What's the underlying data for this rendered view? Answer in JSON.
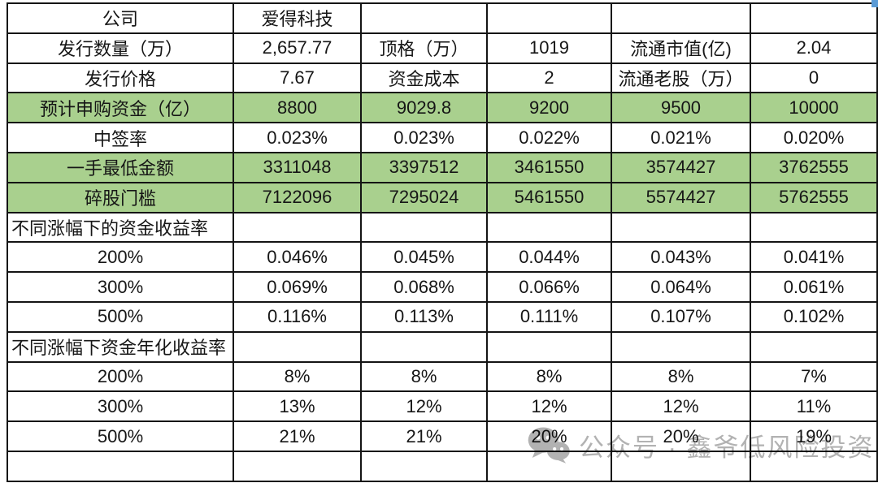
{
  "table": {
    "rows": [
      {
        "highlight": false,
        "label_align": "center",
        "cells": [
          "公司",
          "爱得科技",
          "",
          "",
          "",
          ""
        ]
      },
      {
        "highlight": false,
        "label_align": "center",
        "cells": [
          "发行数量（万）",
          "2,657.77",
          "顶格（万）",
          "1019",
          "流通市值(亿)",
          "2.04"
        ]
      },
      {
        "highlight": false,
        "label_align": "center",
        "cells": [
          "发行价格",
          "7.67",
          "资金成本",
          "2",
          "流通老股（万）",
          "0"
        ]
      },
      {
        "highlight": true,
        "label_align": "center",
        "cells": [
          "预计申购资金（亿）",
          "8800",
          "9029.8",
          "9200",
          "9500",
          "10000"
        ]
      },
      {
        "highlight": false,
        "label_align": "center",
        "cells": [
          "中签率",
          "0.023%",
          "0.023%",
          "0.022%",
          "0.021%",
          "0.020%"
        ]
      },
      {
        "highlight": true,
        "label_align": "center",
        "cells": [
          "一手最低金额",
          "3311048",
          "3397512",
          "3461550",
          "3574427",
          "3762555"
        ]
      },
      {
        "highlight": true,
        "label_align": "center",
        "cells": [
          "碎股门槛",
          "7122096",
          "7295024",
          "5461550",
          "5574427",
          "5762555"
        ]
      },
      {
        "highlight": false,
        "label_align": "left",
        "cells": [
          "不同涨幅下的资金收益率",
          "",
          "",
          "",
          "",
          ""
        ]
      },
      {
        "highlight": false,
        "label_align": "center",
        "cells": [
          "200%",
          "0.046%",
          "0.045%",
          "0.044%",
          "0.043%",
          "0.041%"
        ]
      },
      {
        "highlight": false,
        "label_align": "center",
        "cells": [
          "300%",
          "0.069%",
          "0.068%",
          "0.066%",
          "0.064%",
          "0.061%"
        ]
      },
      {
        "highlight": false,
        "label_align": "center",
        "cells": [
          "500%",
          "0.116%",
          "0.113%",
          "0.111%",
          "0.107%",
          "0.102%"
        ]
      },
      {
        "highlight": false,
        "label_align": "left",
        "cells": [
          "不同涨幅下资金年化收益率",
          "",
          "",
          "",
          "",
          ""
        ]
      },
      {
        "highlight": false,
        "label_align": "center",
        "cells": [
          "200%",
          "8%",
          "8%",
          "8%",
          "8%",
          "7%"
        ]
      },
      {
        "highlight": false,
        "label_align": "center",
        "cells": [
          "300%",
          "13%",
          "12%",
          "12%",
          "12%",
          "11%"
        ]
      },
      {
        "highlight": false,
        "label_align": "center",
        "cells": [
          "500%",
          "21%",
          "21%",
          "20%",
          "20%",
          "19%"
        ]
      },
      {
        "highlight": false,
        "label_align": "center",
        "cells": [
          "",
          "",
          "",
          "",
          "",
          ""
        ]
      }
    ]
  },
  "watermark": {
    "text": "公众号 · 鑫爷低风险投资"
  },
  "colors": {
    "row_highlight": "#a9d08e",
    "watermark_gray": "#b2b2b2",
    "corner_marker_blue": "#5b9bd5",
    "grid_border": "#141414"
  }
}
